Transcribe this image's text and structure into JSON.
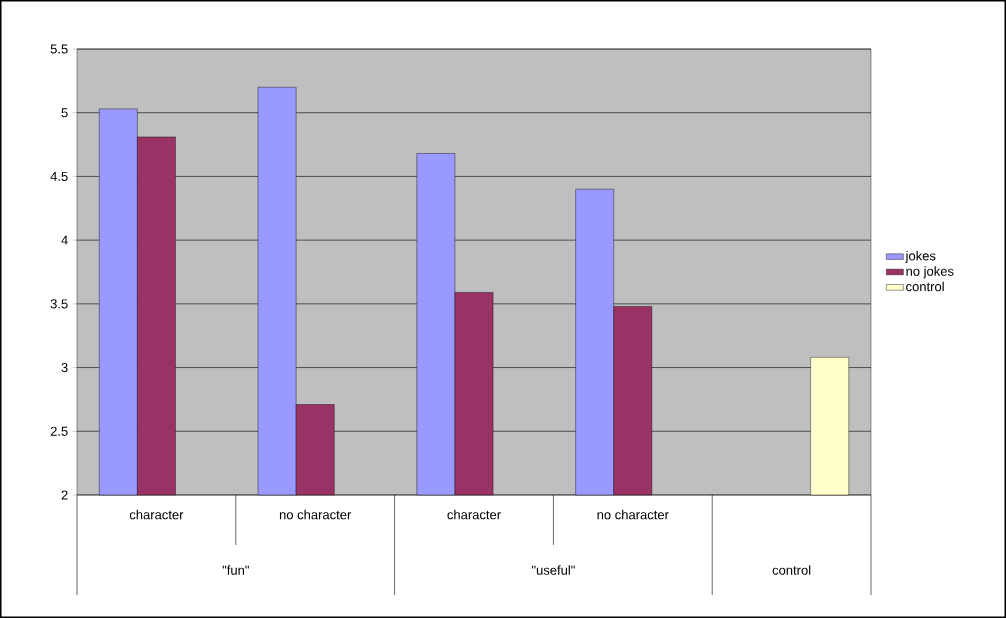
{
  "chart_data": {
    "type": "bar",
    "categories": [
      "character",
      "no character",
      "character",
      "no character",
      null
    ],
    "series": [
      {
        "name": "jokes",
        "color": "#9999ff",
        "values": [
          5.03,
          5.2,
          4.68,
          4.4,
          null
        ]
      },
      {
        "name": "no jokes",
        "color": "#993366",
        "values": [
          4.81,
          2.71,
          3.59,
          3.48,
          null
        ]
      },
      {
        "name": "control",
        "color": "#ffffcc",
        "values": [
          null,
          null,
          null,
          null,
          3.08
        ]
      }
    ],
    "annotations": [
      "\"fun\"",
      "\"useful\"",
      "control"
    ],
    "ylim": [
      2,
      5.5
    ],
    "yticks": [
      2,
      2.5,
      3,
      3.5,
      4,
      4.5,
      5,
      5.5
    ],
    "grid": "y",
    "legend": "right"
  }
}
